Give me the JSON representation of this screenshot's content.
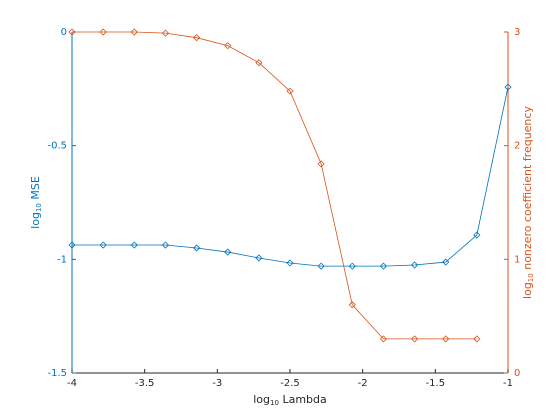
{
  "chart_data": {
    "type": "line",
    "xlabel": {
      "base": "log",
      "sub": "10",
      "rest": " Lambda"
    },
    "ylabel": {
      "base": "log",
      "sub": "10",
      "rest": " MSE"
    },
    "y2label": {
      "base": "log",
      "sub": "10",
      "rest": " nonzero coefficient frequency"
    },
    "x": [
      -4,
      -3.7857,
      -3.5714,
      -3.3571,
      -3.1429,
      -2.9286,
      -2.7143,
      -2.5,
      -2.2857,
      -2.0714,
      -1.8571,
      -1.6429,
      -1.4286,
      -1.2143,
      -1
    ],
    "series": [
      {
        "color": "#0072bd",
        "axis": "y",
        "values": [
          -0.937,
          -0.937,
          -0.937,
          -0.937,
          -0.95,
          -0.968,
          -0.994,
          -1.016,
          -1.03,
          -1.03,
          -1.03,
          -1.025,
          -1.012,
          -0.893,
          -0.242
        ]
      },
      {
        "color": "#d95319",
        "axis": "y2",
        "values": [
          3.0,
          3.0,
          3.0,
          2.99,
          2.95,
          2.88,
          2.73,
          2.48,
          1.84,
          0.6,
          0.3,
          0.3,
          0.3,
          0.3,
          null
        ]
      }
    ],
    "xlim": [
      -4,
      -1
    ],
    "xticks": [
      -4,
      -3.5,
      -3,
      -2.5,
      -2,
      -1.5,
      -1
    ],
    "ylim": [
      -1.5,
      0
    ],
    "yticks": [
      -1.5,
      -1,
      -0.5,
      0
    ],
    "y2lim": [
      0,
      3
    ],
    "y2ticks": [
      0,
      1,
      2,
      3
    ]
  }
}
